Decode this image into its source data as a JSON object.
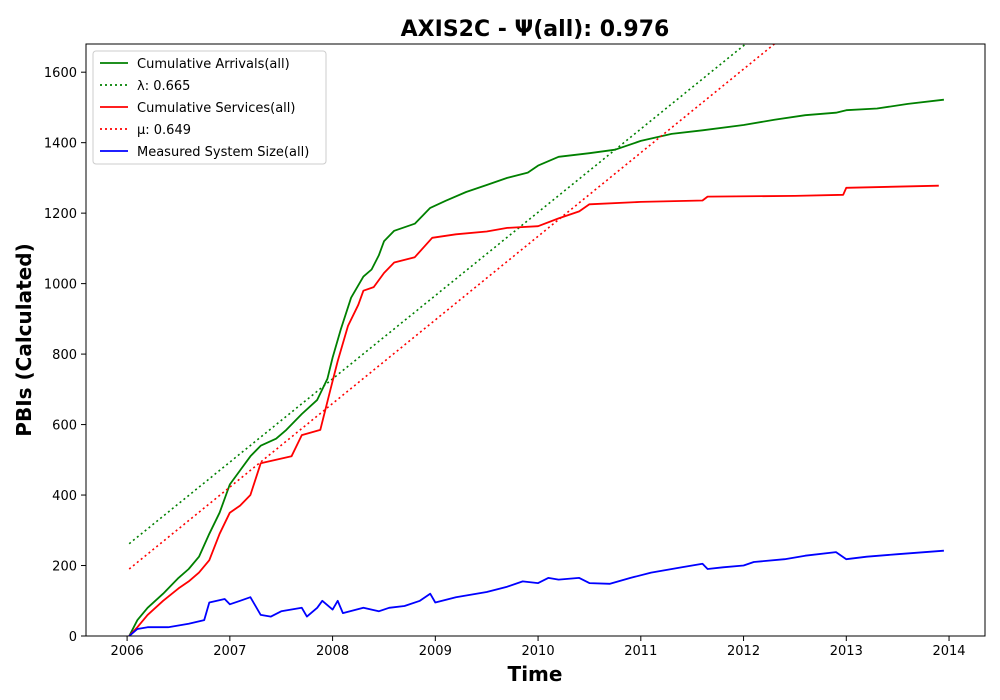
{
  "chart_data": {
    "type": "line",
    "title": "AXIS2C -  Ψ(all): 0.976",
    "xlabel": "Time",
    "ylabel": "PBIs (Calculated)",
    "xlim": [
      2005.6,
      2014.35
    ],
    "ylim": [
      0,
      1680
    ],
    "xticks": [
      "2006",
      "2007",
      "2008",
      "2009",
      "2010",
      "2011",
      "2012",
      "2013",
      "2014"
    ],
    "yticks": [
      "0",
      "200",
      "400",
      "600",
      "800",
      "1000",
      "1200",
      "1400",
      "1600"
    ],
    "grid": false,
    "legend_position": "top-left",
    "series": [
      {
        "name": "Cumulative Arrivals(all)",
        "color": "#008000",
        "style": "solid",
        "points": [
          [
            2006.02,
            0
          ],
          [
            2006.1,
            45
          ],
          [
            2006.2,
            80
          ],
          [
            2006.35,
            120
          ],
          [
            2006.5,
            165
          ],
          [
            2006.6,
            190
          ],
          [
            2006.7,
            225
          ],
          [
            2006.8,
            290
          ],
          [
            2006.9,
            350
          ],
          [
            2007.0,
            430
          ],
          [
            2007.1,
            470
          ],
          [
            2007.2,
            510
          ],
          [
            2007.3,
            540
          ],
          [
            2007.45,
            560
          ],
          [
            2007.55,
            585
          ],
          [
            2007.7,
            630
          ],
          [
            2007.85,
            670
          ],
          [
            2007.95,
            730
          ],
          [
            2008.0,
            790
          ],
          [
            2008.08,
            870
          ],
          [
            2008.18,
            960
          ],
          [
            2008.3,
            1020
          ],
          [
            2008.38,
            1040
          ],
          [
            2008.45,
            1080
          ],
          [
            2008.5,
            1120
          ],
          [
            2008.6,
            1150
          ],
          [
            2008.8,
            1170
          ],
          [
            2008.95,
            1215
          ],
          [
            2009.1,
            1235
          ],
          [
            2009.3,
            1260
          ],
          [
            2009.5,
            1280
          ],
          [
            2009.7,
            1300
          ],
          [
            2009.9,
            1315
          ],
          [
            2010.0,
            1335
          ],
          [
            2010.2,
            1360
          ],
          [
            2010.5,
            1370
          ],
          [
            2010.75,
            1380
          ],
          [
            2011.0,
            1405
          ],
          [
            2011.3,
            1425
          ],
          [
            2011.6,
            1435
          ],
          [
            2012.0,
            1450
          ],
          [
            2012.3,
            1465
          ],
          [
            2012.6,
            1478
          ],
          [
            2012.9,
            1485
          ],
          [
            2013.0,
            1492
          ],
          [
            2013.3,
            1497
          ],
          [
            2013.6,
            1510
          ],
          [
            2013.95,
            1522
          ]
        ]
      },
      {
        "name": "λ: 0.665",
        "color": "#008000",
        "style": "dotted",
        "points": [
          [
            2006.02,
            262
          ],
          [
            2012.02,
            1680
          ]
        ]
      },
      {
        "name": "Cumulative Services(all)",
        "color": "#ff0000",
        "style": "solid",
        "points": [
          [
            2006.02,
            0
          ],
          [
            2006.1,
            25
          ],
          [
            2006.2,
            60
          ],
          [
            2006.35,
            100
          ],
          [
            2006.5,
            135
          ],
          [
            2006.6,
            155
          ],
          [
            2006.7,
            180
          ],
          [
            2006.8,
            215
          ],
          [
            2006.9,
            290
          ],
          [
            2007.0,
            350
          ],
          [
            2007.1,
            370
          ],
          [
            2007.2,
            400
          ],
          [
            2007.3,
            490
          ],
          [
            2007.45,
            500
          ],
          [
            2007.6,
            510
          ],
          [
            2007.7,
            570
          ],
          [
            2007.88,
            585
          ],
          [
            2007.98,
            700
          ],
          [
            2008.05,
            780
          ],
          [
            2008.15,
            880
          ],
          [
            2008.25,
            940
          ],
          [
            2008.3,
            980
          ],
          [
            2008.4,
            990
          ],
          [
            2008.5,
            1030
          ],
          [
            2008.6,
            1060
          ],
          [
            2008.8,
            1075
          ],
          [
            2008.97,
            1130
          ],
          [
            2009.2,
            1140
          ],
          [
            2009.5,
            1148
          ],
          [
            2009.7,
            1158
          ],
          [
            2010.0,
            1163
          ],
          [
            2010.2,
            1185
          ],
          [
            2010.4,
            1205
          ],
          [
            2010.5,
            1225
          ],
          [
            2011.0,
            1232
          ],
          [
            2011.6,
            1236
          ],
          [
            2011.65,
            1247
          ],
          [
            2012.5,
            1249
          ],
          [
            2012.97,
            1252
          ],
          [
            2013.0,
            1272
          ],
          [
            2013.9,
            1278
          ]
        ]
      },
      {
        "name": "μ: 0.649",
        "color": "#ff0000",
        "style": "dotted",
        "points": [
          [
            2006.02,
            190
          ],
          [
            2012.3,
            1680
          ]
        ]
      },
      {
        "name": "Measured System Size(all)",
        "color": "#0000ff",
        "style": "solid",
        "points": [
          [
            2006.02,
            0
          ],
          [
            2006.1,
            20
          ],
          [
            2006.2,
            25
          ],
          [
            2006.4,
            25
          ],
          [
            2006.6,
            35
          ],
          [
            2006.75,
            45
          ],
          [
            2006.8,
            95
          ],
          [
            2006.95,
            105
          ],
          [
            2007.0,
            90
          ],
          [
            2007.1,
            100
          ],
          [
            2007.2,
            110
          ],
          [
            2007.3,
            60
          ],
          [
            2007.4,
            55
          ],
          [
            2007.5,
            70
          ],
          [
            2007.7,
            80
          ],
          [
            2007.75,
            55
          ],
          [
            2007.85,
            80
          ],
          [
            2007.9,
            100
          ],
          [
            2008.0,
            75
          ],
          [
            2008.05,
            100
          ],
          [
            2008.1,
            65
          ],
          [
            2008.3,
            80
          ],
          [
            2008.45,
            70
          ],
          [
            2008.55,
            80
          ],
          [
            2008.7,
            85
          ],
          [
            2008.85,
            100
          ],
          [
            2008.95,
            120
          ],
          [
            2009.0,
            95
          ],
          [
            2009.2,
            110
          ],
          [
            2009.5,
            125
          ],
          [
            2009.7,
            140
          ],
          [
            2009.85,
            155
          ],
          [
            2010.0,
            150
          ],
          [
            2010.1,
            165
          ],
          [
            2010.2,
            160
          ],
          [
            2010.4,
            165
          ],
          [
            2010.5,
            150
          ],
          [
            2010.7,
            148
          ],
          [
            2010.9,
            165
          ],
          [
            2011.1,
            180
          ],
          [
            2011.4,
            195
          ],
          [
            2011.6,
            205
          ],
          [
            2011.65,
            190
          ],
          [
            2011.8,
            195
          ],
          [
            2012.0,
            200
          ],
          [
            2012.1,
            210
          ],
          [
            2012.4,
            218
          ],
          [
            2012.6,
            228
          ],
          [
            2012.9,
            238
          ],
          [
            2013.0,
            218
          ],
          [
            2013.2,
            225
          ],
          [
            2013.5,
            232
          ],
          [
            2013.95,
            242
          ]
        ]
      }
    ]
  }
}
